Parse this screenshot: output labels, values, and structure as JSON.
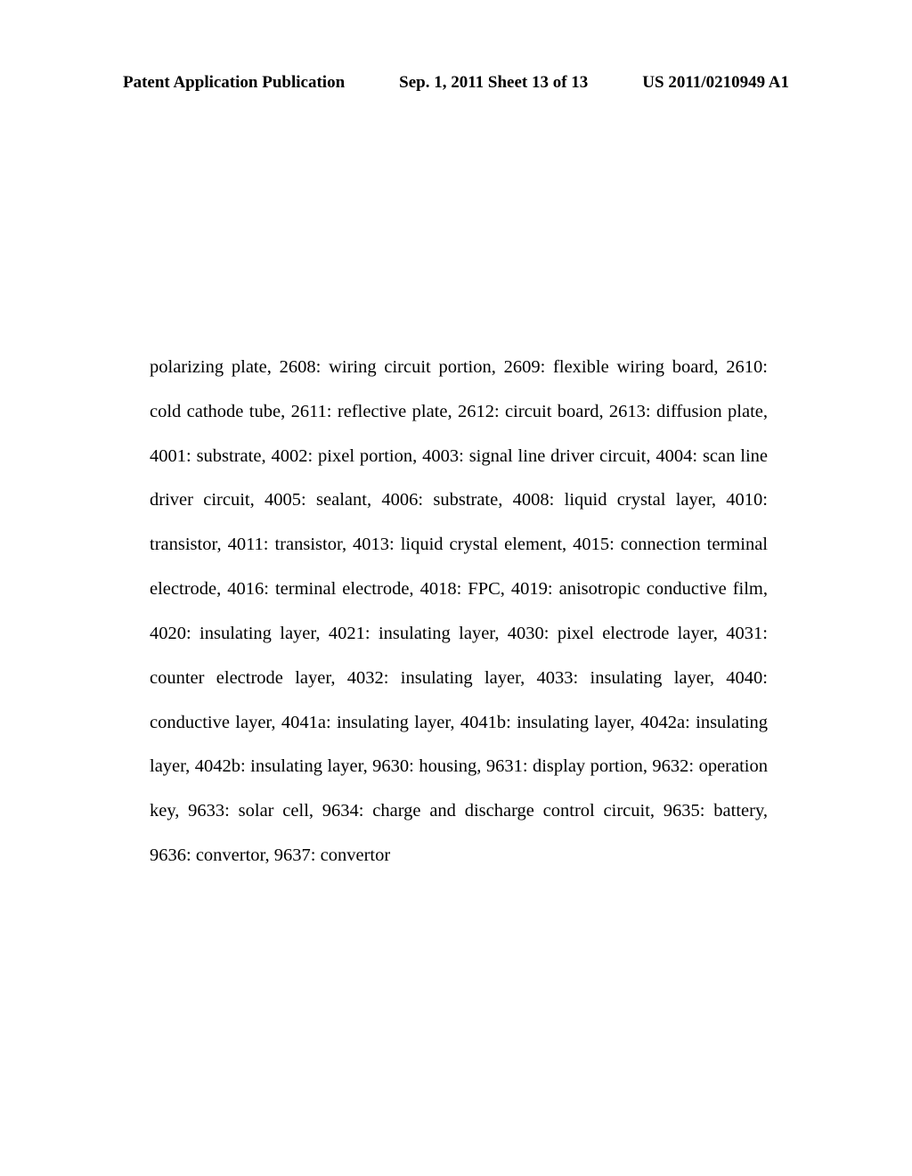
{
  "header": {
    "left": "Patent Application Publication",
    "center": "Sep. 1, 2011   Sheet 13 of 13",
    "right": "US 2011/0210949 A1"
  },
  "body": "polarizing plate, 2608: wiring circuit portion, 2609: flexible wiring board, 2610: cold cathode tube, 2611: reflective plate, 2612: circuit board, 2613: diffusion plate, 4001: substrate, 4002: pixel portion, 4003: signal line driver circuit, 4004: scan line driver circuit, 4005: sealant, 4006: substrate, 4008: liquid crystal layer, 4010: transistor, 4011: transistor, 4013: liquid crystal element, 4015: connection terminal electrode, 4016: terminal electrode, 4018: FPC, 4019: anisotropic conductive film, 4020: insulating layer, 4021: insulating layer, 4030: pixel electrode layer, 4031: counter electrode layer, 4032: insulating layer, 4033: insulating layer, 4040: conductive layer, 4041a: insulating layer, 4041b: insulating layer, 4042a: insulating layer, 4042b: insulating layer, 9630: housing, 9631: display portion, 9632: operation key, 9633: solar cell, 9634: charge and discharge control circuit, 9635: battery, 9636: convertor, 9637: convertor"
}
